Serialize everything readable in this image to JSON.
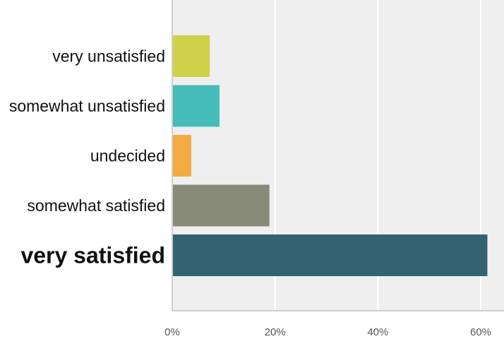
{
  "chart_data": {
    "type": "bar",
    "orientation": "horizontal",
    "title": "",
    "xlabel": "",
    "ylabel": "",
    "categories": [
      "very unsatisfied",
      "somewhat unsatisfied",
      "undecided",
      "somewhat satisfied",
      "very satisfied"
    ],
    "values": [
      7.3,
      9.2,
      3.7,
      18.9,
      61.3
    ],
    "bar_colors": [
      "#cfd249",
      "#46bdbb",
      "#f4ab44",
      "#888a7a",
      "#336370"
    ],
    "highlighted_category": "very satisfied",
    "xlim": [
      0,
      65
    ],
    "xticks": [
      0,
      20,
      40,
      60
    ],
    "xtick_labels": [
      "0%",
      "20%",
      "40%",
      "60%"
    ],
    "grid": true,
    "plot_background": "#efefef",
    "legend": "none"
  }
}
